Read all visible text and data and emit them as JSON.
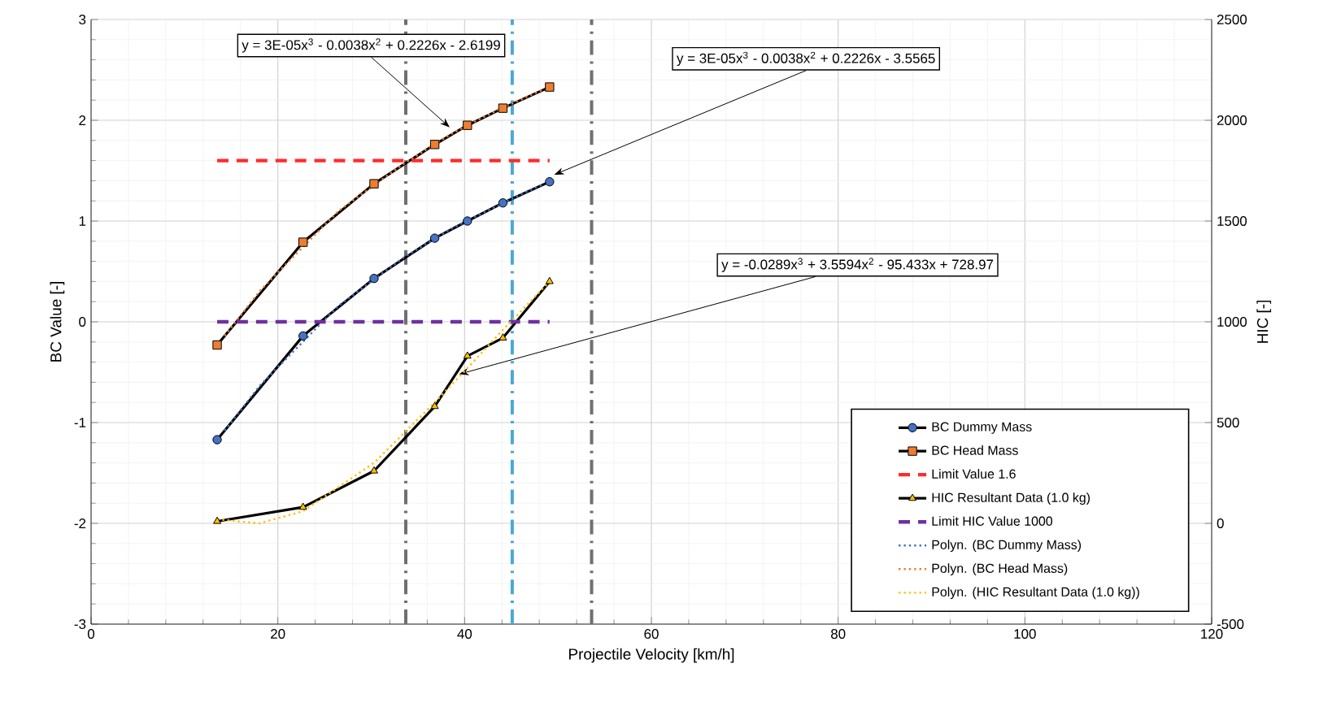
{
  "chart_data": {
    "type": "line",
    "xlabel": "Projectile Velocity [km/h]",
    "ylabel": "BC Value [-]",
    "y2label": "HIC [-]",
    "xlim": [
      0,
      120
    ],
    "xticks": [
      0,
      20,
      40,
      60,
      80,
      100,
      120
    ],
    "ylim": [
      -3,
      3
    ],
    "yticks": [
      -3,
      -2,
      -1,
      0,
      1,
      2,
      3
    ],
    "y2lim": [
      -500,
      2500
    ],
    "y2ticks": [
      -500,
      0,
      500,
      1000,
      1500,
      2000,
      2500
    ],
    "grid": true,
    "legend": "bottom right",
    "series": [
      {
        "name": "BC Dummy Mass",
        "color": "#4472c4",
        "marker": "circle",
        "line_style": "solid",
        "x": [
          13.5,
          22.7,
          30.3,
          36.8,
          40.3,
          44.1,
          49.1
        ],
        "values": [
          -1.17,
          -0.14,
          0.43,
          0.83,
          1.0,
          1.18,
          1.39
        ]
      },
      {
        "name": "BC Head Mass",
        "color": "#ed7d31",
        "marker": "square",
        "line_style": "solid",
        "x": [
          13.5,
          22.7,
          30.3,
          36.8,
          40.3,
          44.1,
          49.1
        ],
        "values": [
          -0.23,
          0.79,
          1.37,
          1.76,
          1.95,
          2.12,
          2.33
        ]
      },
      {
        "name": "Limit Value 1.6",
        "color": "#ff2b2b",
        "marker": "none",
        "line_style": "dashed",
        "x": [
          13.5,
          49.1
        ],
        "values": [
          1.6,
          1.6
        ]
      },
      {
        "name": "HIC Resultant Data (1.0 kg)",
        "color": "#ffc000",
        "marker": "triangle",
        "line_style": "solid",
        "axis": "y2",
        "x": [
          13.5,
          22.7,
          30.3,
          36.8,
          40.3,
          44.1,
          49.1
        ],
        "values": [
          10,
          80,
          260,
          580,
          830,
          920,
          1200
        ]
      },
      {
        "name": "Limit HIC Value 1000",
        "color": "#7030a0",
        "marker": "none",
        "line_style": "dashed",
        "axis": "y2",
        "x": [
          13.5,
          49.1
        ],
        "values": [
          1000,
          1000
        ]
      },
      {
        "name": "Polyn. (BC Dummy Mass)",
        "color": "#4472c4",
        "type": "line",
        "marker": "none",
        "line_style": "dotted",
        "x": [
          14.3,
          18.1,
          26.5,
          33.5,
          38.5,
          42.2,
          46.6,
          48.3
        ],
        "values": [
          -1.08,
          -0.63,
          0.16,
          0.64,
          0.92,
          1.09,
          1.29,
          1.36
        ]
      },
      {
        "name": "Polyn. (BC Head Mass)",
        "color": "#ed7d31",
        "type": "line",
        "marker": "none",
        "line_style": "dotted",
        "x": [
          14.3,
          18.1,
          26.5,
          33.5,
          38.5,
          42.2,
          46.6,
          48.3
        ],
        "values": [
          -0.14,
          0.31,
          1.1,
          1.57,
          1.86,
          2.04,
          2.23,
          2.3
        ]
      },
      {
        "name": "Polyn. (HIC Resultant Data (1.0 kg))",
        "color": "#ffc000",
        "type": "line",
        "marker": "none",
        "line_style": "dotted",
        "axis": "y2",
        "x": [
          13.5,
          18,
          22.7,
          30.3,
          36.8,
          40.3,
          44.1,
          49.1
        ],
        "values": [
          20,
          0,
          60,
          300,
          600,
          770,
          960,
          1200
        ]
      }
    ],
    "ref_lines": [
      {
        "axis": "x",
        "value": 33.7,
        "color": "#6f6f6f",
        "line_style": "dashed"
      },
      {
        "axis": "x",
        "value": 45.1,
        "color": "#4aa8d8",
        "line_style": "dashed"
      },
      {
        "axis": "x",
        "value": 53.6,
        "color": "#6f6f6f",
        "line_style": "dashed"
      }
    ],
    "annotations": [
      {
        "text": "y = 3E-05x$^{3}$ - 0.0038x$^{2}$ + 0.2226x - 2.6199",
        "x": 38.4,
        "y": 1.93
      },
      {
        "text": "y = 3E-05x$^{3}$ - 0.0038x$^{2}$ + 0.2226x - 3.5565",
        "x": 49.6,
        "y": 1.46
      },
      {
        "text": "y = -0.0289x$^{3}$ + 3.5594x$^{2}$ - 95.433x + 728.97",
        "x": 39.4,
        "y": -0.52
      }
    ]
  }
}
